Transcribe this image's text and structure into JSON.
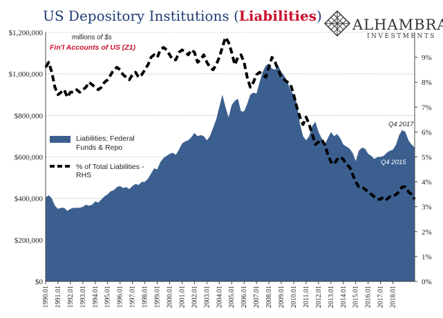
{
  "title": {
    "prefix": "US Depository Institutions (",
    "highlight": "Liabilities",
    "suffix": ")"
  },
  "logo": {
    "name": "ALHAMBRA",
    "sub": "INVESTMENTS",
    "mark": "diamond-lattice-logo"
  },
  "notes": {
    "units": "millions of $s",
    "source": "Fin'l Accounts of US (Z1)"
  },
  "annotations": {
    "q4_2017": "Q4 2017",
    "q4_2015": "Q4 2015"
  },
  "legend": {
    "area_label_1": "Liabilities; Federal",
    "area_label_2": "Funds & Repo",
    "line_label_1": "% of Total Liabilities -",
    "line_label_2": "RHS"
  },
  "colors": {
    "area": "#3b5f8f",
    "line": "#000000",
    "title_blue": "#1f3d73",
    "title_red": "#c8102e",
    "annot_white": "#ffffff"
  },
  "chart_data": {
    "type": "area",
    "x_start": "1990.01",
    "x_step": "quarter",
    "x_tick_labels": [
      "1990.01",
      "1991.01",
      "1992.01",
      "1993.01",
      "1994.01",
      "1995.01",
      "1996.01",
      "1997.01",
      "1998.01",
      "1999.01",
      "2000.01",
      "2001.01",
      "2002.01",
      "2003.01",
      "2004.01",
      "2005.01",
      "2006.01",
      "2007.01",
      "2008.01",
      "2009.01",
      "2010.01",
      "2011.01",
      "2012.01",
      "2013.01",
      "2014.01",
      "2015.01",
      "2016.01",
      "2017.01",
      "2018.01"
    ],
    "y_left": {
      "min": 0,
      "max": 1200000,
      "ticks": [
        "$0",
        "$200,000",
        "$400,000",
        "$600,000",
        "$800,000",
        "$1,000,000",
        "$1,200,000"
      ]
    },
    "y_right": {
      "min": 0,
      "max": 10,
      "ticks": [
        "0%",
        "1%",
        "2%",
        "3%",
        "4%",
        "5%",
        "6%",
        "7%",
        "8%",
        "9%"
      ]
    },
    "series": [
      {
        "name": "Liabilities; Federal Funds & Repo",
        "axis": "left",
        "kind": "area",
        "values": [
          405000,
          415000,
          400000,
          365000,
          350000,
          355000,
          355000,
          340000,
          350000,
          355000,
          355000,
          355000,
          360000,
          370000,
          365000,
          370000,
          385000,
          380000,
          395000,
          410000,
          420000,
          435000,
          440000,
          455000,
          460000,
          450000,
          455000,
          445000,
          460000,
          470000,
          465000,
          480000,
          480000,
          495000,
          520000,
          545000,
          540000,
          575000,
          595000,
          605000,
          615000,
          620000,
          610000,
          635000,
          665000,
          675000,
          680000,
          695000,
          715000,
          700000,
          705000,
          700000,
          680000,
          700000,
          740000,
          780000,
          840000,
          900000,
          840000,
          790000,
          850000,
          870000,
          880000,
          820000,
          820000,
          855000,
          900000,
          910000,
          905000,
          960000,
          1010000,
          1040000,
          1050000,
          1025000,
          1020000,
          1040000,
          1010000,
          990000,
          960000,
          920000,
          900000,
          860000,
          760000,
          700000,
          680000,
          700000,
          750000,
          770000,
          720000,
          690000,
          660000,
          690000,
          720000,
          700000,
          710000,
          690000,
          660000,
          650000,
          640000,
          620000,
          580000,
          630000,
          645000,
          640000,
          615000,
          605000,
          590000,
          600000,
          600000,
          605000,
          620000,
          630000,
          635000,
          660000,
          705000,
          730000,
          720000,
          680000,
          660000,
          645000
        ]
      },
      {
        "name": "% of Total Liabilities - RHS",
        "axis": "right",
        "kind": "line",
        "values": [
          8.6,
          8.8,
          8.4,
          7.8,
          7.5,
          7.6,
          7.7,
          7.4,
          7.6,
          7.6,
          7.7,
          7.6,
          7.7,
          7.8,
          8.0,
          7.9,
          7.8,
          7.7,
          7.8,
          8.0,
          8.1,
          8.3,
          8.5,
          8.6,
          8.5,
          8.3,
          8.2,
          8.1,
          8.3,
          8.4,
          8.2,
          8.3,
          8.5,
          8.7,
          9.0,
          9.1,
          9.0,
          9.3,
          9.4,
          9.3,
          9.1,
          8.9,
          8.9,
          9.2,
          9.3,
          9.2,
          9.1,
          9.3,
          9.2,
          8.8,
          8.9,
          9.1,
          8.8,
          8.6,
          8.5,
          8.7,
          9.0,
          9.4,
          9.8,
          9.6,
          9.2,
          8.7,
          9.0,
          9.1,
          8.8,
          8.2,
          7.8,
          8.0,
          8.3,
          8.4,
          8.3,
          8.2,
          8.6,
          9.0,
          8.8,
          8.5,
          8.2,
          8.1,
          8.0,
          7.9,
          7.5,
          7.0,
          6.6,
          6.3,
          6.6,
          6.3,
          5.9,
          5.5,
          5.6,
          5.7,
          5.5,
          5.1,
          4.8,
          4.7,
          4.9,
          5.0,
          4.9,
          4.7,
          4.6,
          4.3,
          4.0,
          3.8,
          3.8,
          3.7,
          3.6,
          3.5,
          3.4,
          3.3,
          3.3,
          3.4,
          3.3,
          3.4,
          3.4,
          3.5,
          3.6,
          3.8,
          3.8,
          3.6,
          3.5,
          3.3
        ]
      }
    ]
  }
}
